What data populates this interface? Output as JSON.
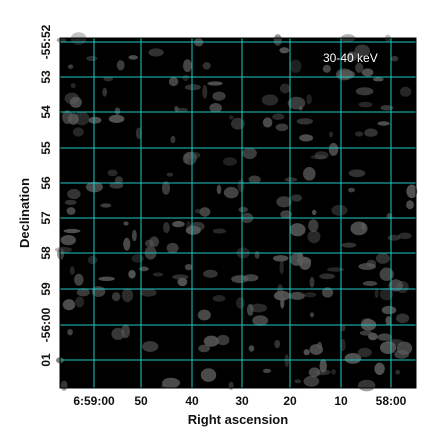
{
  "chart_data": {
    "type": "heatmap",
    "annotation": "30-40 keV",
    "xlabel": "Right ascension",
    "ylabel": "Declination",
    "x_ticks": [
      "6:59:00",
      "50",
      "40",
      "30",
      "20",
      "10",
      "58:00"
    ],
    "y_ticks": [
      "-55:52",
      "53",
      "54",
      "55",
      "56",
      "57",
      "58",
      "59",
      "-56:00",
      "01"
    ],
    "y_tick_prefixes": [
      "",
      "",
      "",
      "",
      "",
      "",
      "",
      "",
      "",
      ""
    ],
    "y_tick_prefix_top": "-55:52",
    "y_tick_prefix_bottom": "01",
    "grid": true,
    "colors": {
      "background": "#000000",
      "grid": "#1ec8c8",
      "emission": "#5a5a5a",
      "text_on_map": "#ffffff"
    }
  }
}
